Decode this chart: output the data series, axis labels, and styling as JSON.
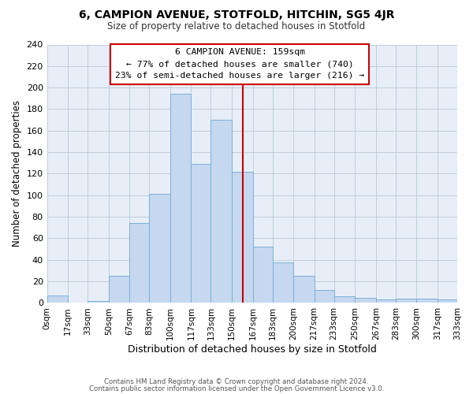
{
  "title": "6, CAMPION AVENUE, STOTFOLD, HITCHIN, SG5 4JR",
  "subtitle": "Size of property relative to detached houses in Stotfold",
  "xlabel": "Distribution of detached houses by size in Stotfold",
  "ylabel": "Number of detached properties",
  "bin_labels": [
    "0sqm",
    "17sqm",
    "33sqm",
    "50sqm",
    "67sqm",
    "83sqm",
    "100sqm",
    "117sqm",
    "133sqm",
    "150sqm",
    "167sqm",
    "183sqm",
    "200sqm",
    "217sqm",
    "233sqm",
    "250sqm",
    "267sqm",
    "283sqm",
    "300sqm",
    "317sqm",
    "333sqm"
  ],
  "bin_edges": [
    0,
    17,
    33,
    50,
    67,
    83,
    100,
    117,
    133,
    150,
    167,
    183,
    200,
    217,
    233,
    250,
    267,
    283,
    300,
    317,
    333
  ],
  "bar_heights": [
    7,
    0,
    2,
    25,
    74,
    101,
    194,
    129,
    170,
    122,
    52,
    38,
    25,
    12,
    6,
    5,
    3,
    4,
    4,
    3,
    0
  ],
  "bar_color": "#c5d8f0",
  "bar_edgecolor": "#7bafd4",
  "vline_x": 159,
  "vline_color": "#cc0000",
  "annotation_title": "6 CAMPION AVENUE: 159sqm",
  "annotation_line1": "← 77% of detached houses are smaller (740)",
  "annotation_line2": "23% of semi-detached houses are larger (216) →",
  "annotation_box_color": "#cc0000",
  "ylim": [
    0,
    240
  ],
  "yticks": [
    0,
    20,
    40,
    60,
    80,
    100,
    120,
    140,
    160,
    180,
    200,
    220,
    240
  ],
  "grid_color": "#c0ccdd",
  "background_color": "#e8eef7",
  "footer1": "Contains HM Land Registry data © Crown copyright and database right 2024.",
  "footer2": "Contains public sector information licensed under the Open Government Licence v3.0."
}
